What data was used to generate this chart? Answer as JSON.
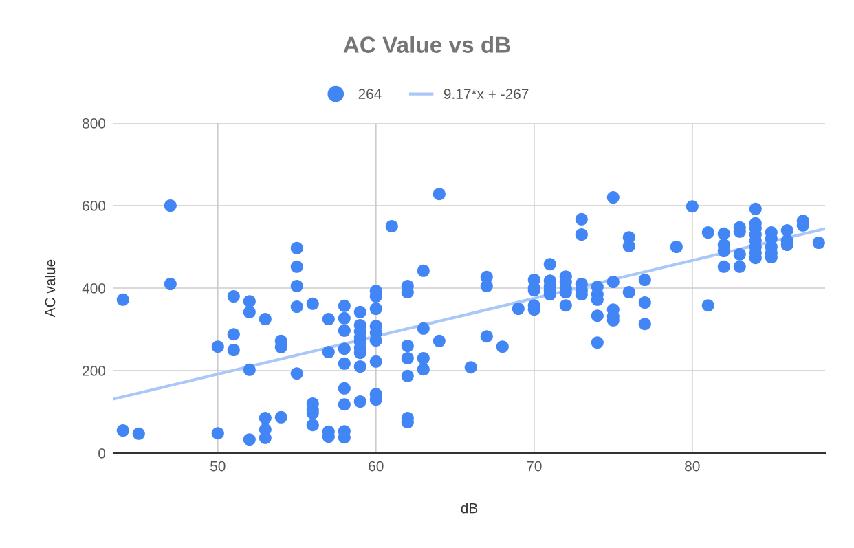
{
  "chart_data": {
    "type": "scatter",
    "title": "AC Value vs dB",
    "xlabel": "dB",
    "ylabel": "AC value",
    "xlim": [
      43.4,
      88.4
    ],
    "xticks": [
      50,
      60,
      70,
      80
    ],
    "ylim": [
      0,
      800
    ],
    "yticks": [
      0,
      200,
      400,
      600,
      800
    ],
    "grid": true,
    "legend": "top",
    "series": [
      {
        "name": "264",
        "color": "#4285f4",
        "marker": "circle",
        "x": [
          44,
          44,
          45,
          47,
          47,
          50,
          50,
          51,
          51,
          51,
          52,
          52,
          52,
          52,
          53,
          53,
          53,
          53,
          54,
          54,
          54,
          55,
          55,
          55,
          55,
          55,
          56,
          56,
          56,
          56,
          56,
          57,
          57,
          57,
          57,
          58,
          58,
          58,
          58,
          58,
          58,
          58,
          58,
          58,
          59,
          59,
          59,
          59,
          59,
          59,
          59,
          59,
          59,
          60,
          60,
          60,
          60,
          60,
          60,
          60,
          60,
          60,
          61,
          62,
          62,
          62,
          62,
          62,
          62,
          62,
          63,
          63,
          63,
          63,
          64,
          64,
          66,
          67,
          67,
          67,
          68,
          69,
          70,
          70,
          70,
          70,
          70,
          71,
          71,
          71,
          71,
          71,
          72,
          72,
          72,
          72,
          72,
          73,
          73,
          73,
          73,
          73,
          74,
          74,
          74,
          74,
          74,
          75,
          75,
          75,
          75,
          75,
          76,
          76,
          76,
          77,
          77,
          77,
          79,
          80,
          81,
          81,
          82,
          82,
          82,
          82,
          83,
          83,
          83,
          83,
          84,
          84,
          84,
          84,
          84,
          84,
          84,
          84,
          85,
          85,
          85,
          85,
          85,
          86,
          86,
          86,
          87,
          87,
          88
        ],
        "values": [
          372,
          55,
          47,
          600,
          410,
          258,
          48,
          380,
          288,
          250,
          368,
          342,
          202,
          33,
          325,
          85,
          57,
          37,
          272,
          257,
          87,
          497,
          452,
          405,
          355,
          193,
          362,
          120,
          105,
          97,
          68,
          325,
          245,
          52,
          40,
          357,
          327,
          297,
          253,
          217,
          157,
          118,
          53,
          38,
          342,
          310,
          295,
          280,
          270,
          255,
          243,
          210,
          125,
          393,
          380,
          350,
          308,
          292,
          273,
          222,
          143,
          130,
          550,
          405,
          390,
          260,
          230,
          187,
          85,
          75,
          442,
          302,
          230,
          203,
          628,
          272,
          208,
          427,
          405,
          283,
          258,
          350,
          420,
          400,
          395,
          358,
          348,
          458,
          418,
          405,
          395,
          385,
          428,
          415,
          400,
          390,
          358,
          567,
          530,
          410,
          395,
          385,
          403,
          385,
          372,
          333,
          268,
          620,
          415,
          348,
          332,
          322,
          523,
          502,
          390,
          420,
          365,
          313,
          500,
          598,
          535,
          358,
          532,
          505,
          490,
          452,
          547,
          537,
          482,
          452,
          592,
          557,
          545,
          530,
          515,
          500,
          485,
          473,
          535,
          520,
          500,
          485,
          475,
          540,
          515,
          505,
          563,
          552,
          510
        ]
      },
      {
        "name": "9.17*x + -267",
        "type": "line",
        "color": "#a9c8f8",
        "marker": "none",
        "x": [
          43.4,
          88.4
        ],
        "values": [
          131,
          544
        ]
      }
    ]
  }
}
